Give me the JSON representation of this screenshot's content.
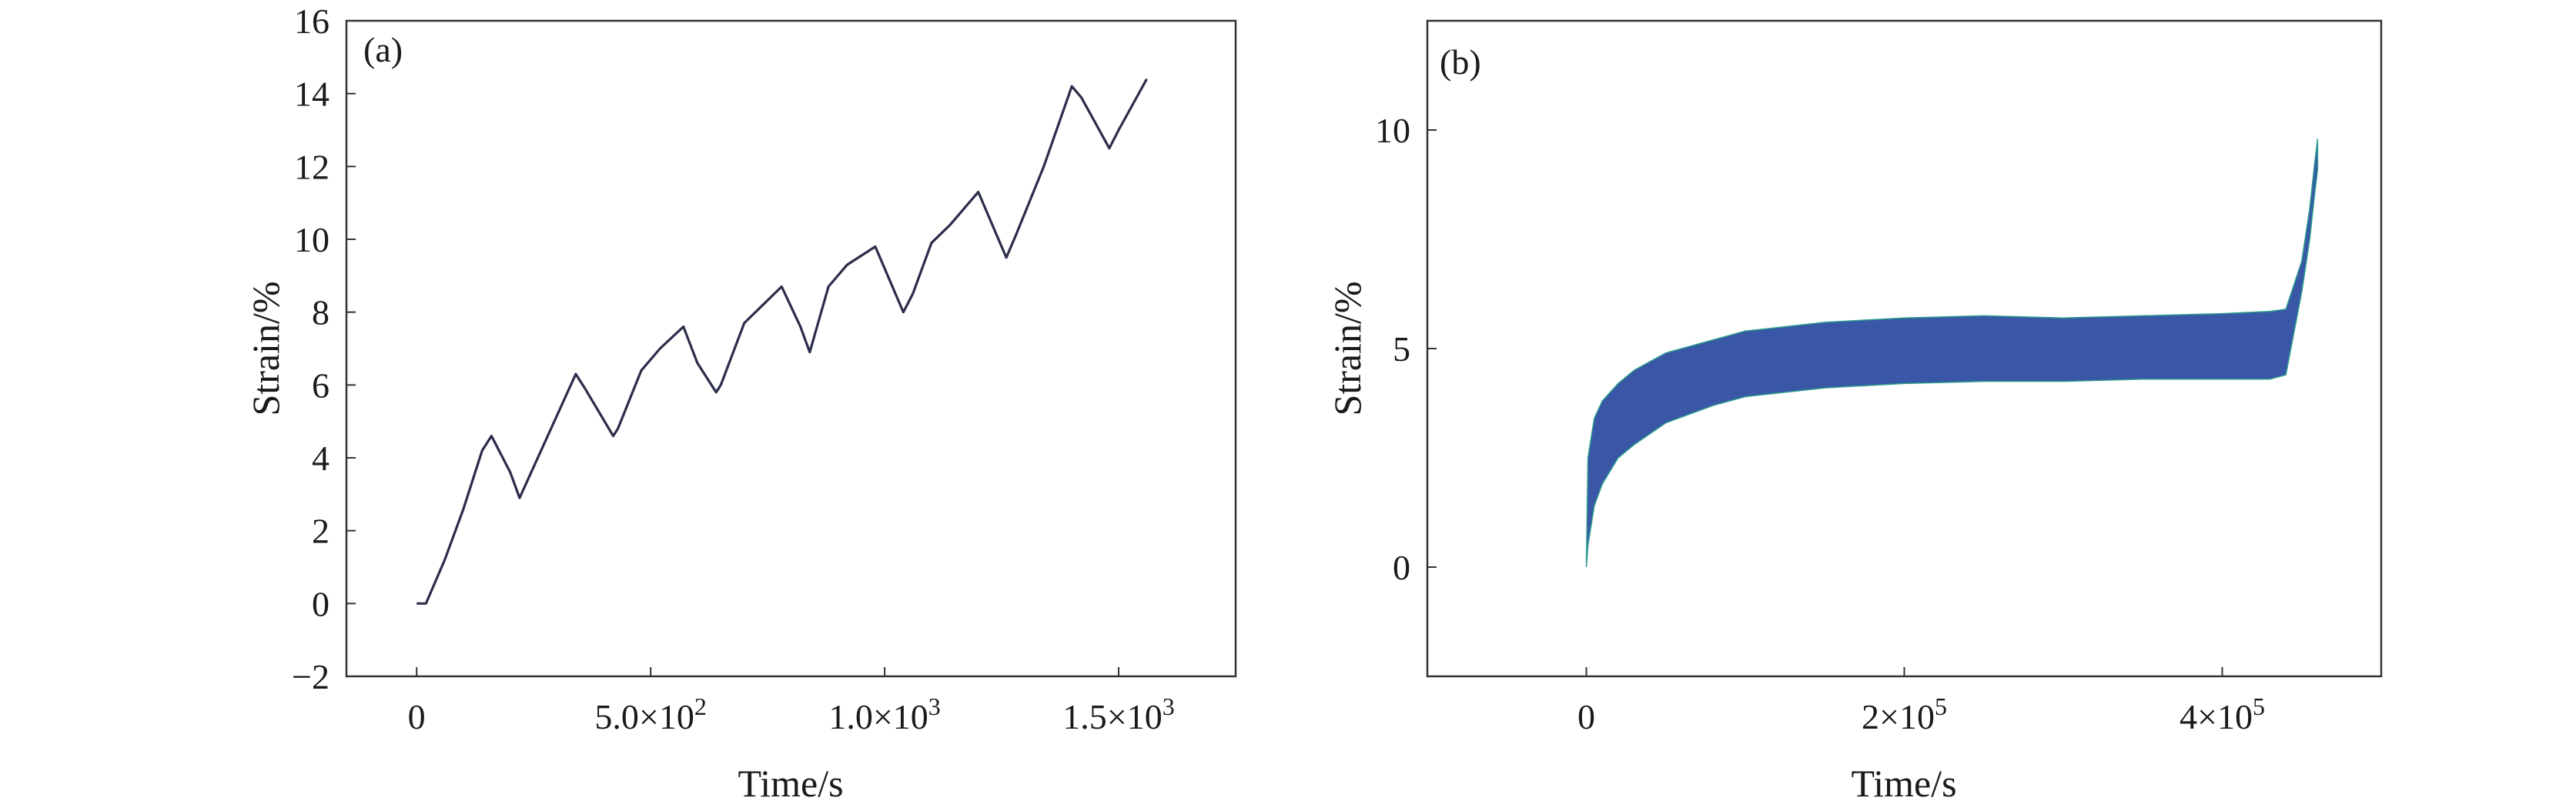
{
  "chart_data": [
    {
      "type": "line",
      "panel_label": "(a)",
      "xlabel": "Time/s",
      "ylabel": "Strain/%",
      "xlim": [
        -150,
        1750
      ],
      "ylim": [
        -2,
        16
      ],
      "xticks": [
        {
          "value": 0,
          "label": "0"
        },
        {
          "value": 500,
          "mant": "5.0×10",
          "exp": "2"
        },
        {
          "value": 1000,
          "mant": "1.0×10",
          "exp": "3"
        },
        {
          "value": 1500,
          "mant": "1.5×10",
          "exp": "3"
        }
      ],
      "yticks": [
        {
          "value": -2,
          "label": "−2"
        },
        {
          "value": 0,
          "label": "0"
        },
        {
          "value": 2,
          "label": "2"
        },
        {
          "value": 4,
          "label": "4"
        },
        {
          "value": 6,
          "label": "6"
        },
        {
          "value": 8,
          "label": "8"
        },
        {
          "value": 10,
          "label": "10"
        },
        {
          "value": 12,
          "label": "12"
        },
        {
          "value": 14,
          "label": "14"
        },
        {
          "value": 16,
          "label": "16"
        }
      ],
      "grid": false,
      "line_color": "#2b2d4a",
      "series": [
        {
          "x": [
            0,
            20,
            60,
            100,
            140,
            160,
            200,
            220,
            280,
            340,
            360,
            420,
            430,
            480,
            520,
            570,
            600,
            640,
            650,
            700,
            740,
            780,
            820,
            840,
            880,
            920,
            980,
            1040,
            1060,
            1100,
            1140,
            1200,
            1260,
            1280,
            1340,
            1400,
            1420,
            1480,
            1500,
            1560
          ],
          "y": [
            0,
            0,
            1.2,
            2.6,
            4.2,
            4.6,
            3.6,
            2.9,
            4.6,
            6.3,
            5.9,
            4.6,
            4.8,
            6.4,
            7.0,
            7.6,
            6.6,
            5.8,
            6.0,
            7.7,
            8.2,
            8.7,
            7.6,
            6.9,
            8.7,
            9.3,
            9.8,
            8.0,
            8.5,
            9.9,
            10.4,
            11.3,
            9.5,
            10.1,
            12.0,
            14.2,
            13.9,
            12.5,
            13.0,
            14.4
          ]
        }
      ]
    },
    {
      "type": "area",
      "panel_label": "(b)",
      "xlabel": "Time/s",
      "ylabel": "Strain/%",
      "xlim": [
        -100000,
        500000
      ],
      "ylim": [
        -2.5,
        12.5
      ],
      "xticks": [
        {
          "value": 0,
          "label": "0"
        },
        {
          "value": 200000,
          "mant": "2×10",
          "exp": "5"
        },
        {
          "value": 400000,
          "mant": "4×10",
          "exp": "5"
        }
      ],
      "yticks": [
        {
          "value": 0,
          "label": "0"
        },
        {
          "value": 5,
          "label": "5"
        },
        {
          "value": 10,
          "label": "10"
        }
      ],
      "grid": false,
      "fill_color": "#3a56a6",
      "edge_color": "#2a9a8e",
      "series": [
        {
          "x": [
            0,
            1000,
            5000,
            10000,
            20000,
            30000,
            50000,
            80000,
            100000,
            150000,
            200000,
            250000,
            300000,
            350000,
            400000,
            430000,
            440000,
            450000,
            455000,
            458000,
            460000
          ],
          "upper": [
            0,
            2.5,
            3.4,
            3.8,
            4.2,
            4.5,
            4.9,
            5.2,
            5.4,
            5.6,
            5.7,
            5.75,
            5.7,
            5.75,
            5.8,
            5.85,
            5.9,
            7.0,
            8.2,
            9.2,
            9.8
          ],
          "lower": [
            0,
            0.5,
            1.4,
            1.9,
            2.5,
            2.8,
            3.3,
            3.7,
            3.9,
            4.1,
            4.2,
            4.25,
            4.25,
            4.3,
            4.3,
            4.3,
            4.4,
            6.3,
            7.5,
            8.5,
            9.1
          ]
        }
      ]
    }
  ]
}
